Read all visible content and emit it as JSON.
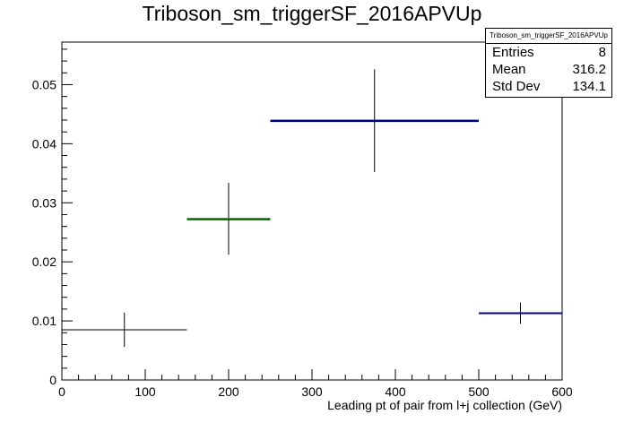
{
  "title": "Triboson_sm_triggerSF_2016APVUp",
  "stats_box": {
    "name": "Triboson_sm_triggerSF_2016APVUp",
    "rows": [
      {
        "label": "Entries",
        "value": "8"
      },
      {
        "label": "Mean",
        "value": "316.2"
      },
      {
        "label": "Std Dev",
        "value": "134.1"
      }
    ]
  },
  "chart_data": {
    "type": "histogram",
    "title": "Triboson_sm_triggerSF_2016APVUp",
    "xlabel": "Leading pt of pair from l+j collection (GeV)",
    "ylabel": "",
    "xlim": [
      0,
      600
    ],
    "ylim": [
      0,
      0.0572
    ],
    "x_ticks": [
      0,
      100,
      200,
      300,
      400,
      500,
      600
    ],
    "y_ticks": [
      0,
      0.01,
      0.02,
      0.03,
      0.04,
      0.05
    ],
    "x_tick_labels": [
      "0",
      "100",
      "200",
      "300",
      "400",
      "500",
      "600"
    ],
    "y_tick_labels": [
      "0",
      "0.01",
      "0.02",
      "0.03",
      "0.04",
      "0.05"
    ],
    "grid": false,
    "legend": "top-right stats box",
    "bins": [
      {
        "x_low": 0,
        "x_high": 150,
        "center": 75,
        "value": 0.0085,
        "err": 0.0029
      },
      {
        "x_low": 150,
        "x_high": 250,
        "center": 200,
        "value": 0.0273,
        "err": 0.0061
      },
      {
        "x_low": 250,
        "x_high": 500,
        "center": 375,
        "value": 0.0439,
        "err": 0.0087
      },
      {
        "x_low": 500,
        "x_high": 600,
        "center": 550,
        "value": 0.0113,
        "err": 0.0018
      }
    ],
    "overlays": [
      {
        "bins": [
          1,
          2
        ],
        "color": "#00aa00"
      },
      {
        "bins": [
          2,
          3
        ],
        "color": "#000099"
      }
    ]
  }
}
